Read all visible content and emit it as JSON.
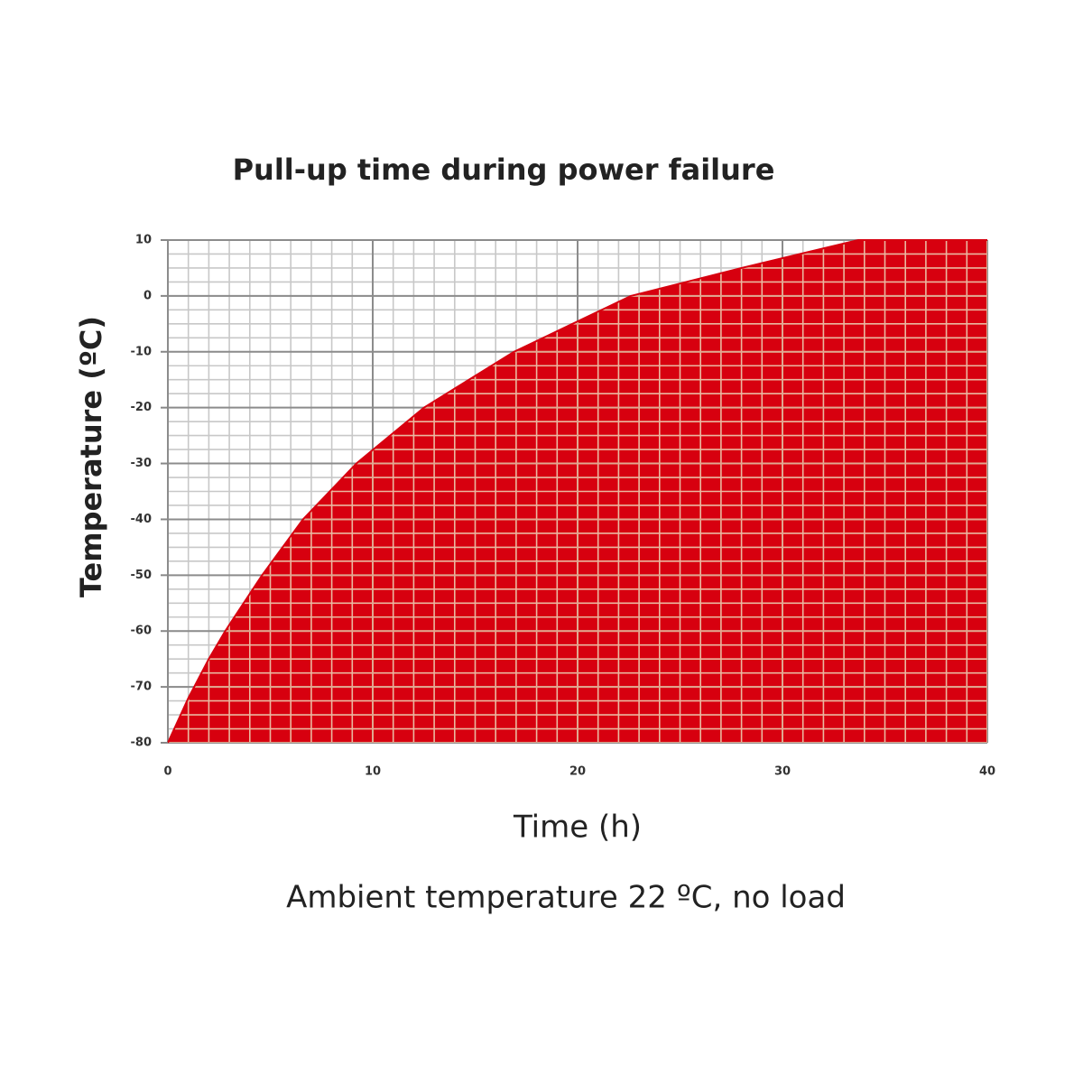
{
  "chart_data": {
    "type": "area",
    "title": "Pull-up time during power failure",
    "x_label": "Time (h)",
    "y_label": "Temperature (ºC)",
    "note": "Ambient temperature 22 ºC, no load",
    "x": [
      0,
      1,
      2,
      2.8,
      4.6,
      6.6,
      9.2,
      12.5,
      16.9,
      22.6,
      28,
      33.7,
      40
    ],
    "values": [
      -80,
      -72,
      -65,
      -60,
      -50,
      -40,
      -30,
      -20,
      -10,
      0,
      5,
      10,
      10
    ],
    "color": "#d7000f",
    "xlim": [
      0,
      40
    ],
    "xticks": [
      0,
      10,
      20,
      30,
      40
    ],
    "ylim": [
      -80,
      10
    ],
    "yticks": [
      -80,
      -70,
      -60,
      -50,
      -40,
      -30,
      -20,
      -10,
      0,
      10
    ],
    "grid": true
  }
}
